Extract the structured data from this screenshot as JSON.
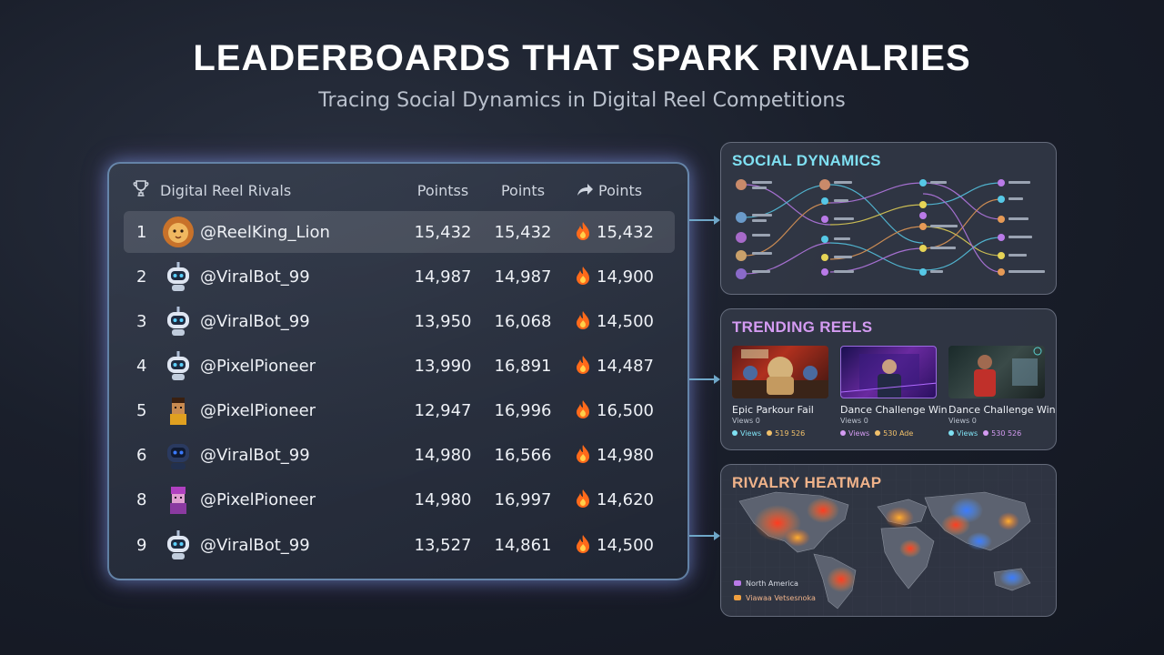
{
  "header": {
    "title": "LEADERBOARDS THAT SPARK RIVALRIES",
    "subtitle": "Tracing Social Dynamics in Digital Reel Competitions"
  },
  "leaderboard": {
    "title": "Digital Reel Rivals",
    "columns": [
      "Pointss",
      "Points",
      "Points"
    ],
    "rows": [
      {
        "rank": "1",
        "user": "@ReelKing_Lion",
        "avatar": "lion-avatar",
        "p1": "15,432",
        "p2": "15,432",
        "p3": "15,432"
      },
      {
        "rank": "2",
        "user": "@ViralBot_99",
        "avatar": "robot-avatar",
        "p1": "14,987",
        "p2": "14,987",
        "p3": "14,900"
      },
      {
        "rank": "3",
        "user": "@ViralBot_99",
        "avatar": "robot-avatar",
        "p1": "13,950",
        "p2": "16,068",
        "p3": "14,500"
      },
      {
        "rank": "4",
        "user": "@PixelPioneer",
        "avatar": "robot-avatar",
        "p1": "13,990",
        "p2": "16,891",
        "p3": "14,487"
      },
      {
        "rank": "5",
        "user": "@PixelPioneer",
        "avatar": "pixel-person-avatar",
        "p1": "12,947",
        "p2": "16,996",
        "p3": "16,500"
      },
      {
        "rank": "6",
        "user": "@ViralBot_99",
        "avatar": "dark-robot-avatar",
        "p1": "14,980",
        "p2": "16,566",
        "p3": "14,980"
      },
      {
        "rank": "8",
        "user": "@PixelPioneer",
        "avatar": "pink-pixel-avatar",
        "p1": "14,980",
        "p2": "16,997",
        "p3": "14,620"
      },
      {
        "rank": "9",
        "user": "@ViralBot_99",
        "avatar": "robot-avatar",
        "p1": "13,527",
        "p2": "14,861",
        "p3": "14,500"
      }
    ]
  },
  "social": {
    "title": "SOCIAL DYNAMICS"
  },
  "trending": {
    "title": "TRENDING REELS",
    "reels": [
      {
        "title": "Epic Parkour Fail",
        "views": "Views 0",
        "tag1": "Views",
        "tag2": "519 526"
      },
      {
        "title": "Dance Challenge Win",
        "views": "Views 0",
        "tag1": "Views",
        "tag2": "530 Ade"
      },
      {
        "title": "Dance Challenge Win",
        "views": "Views 0",
        "tag1": "Views",
        "tag2": "530 526"
      }
    ]
  },
  "heatmap": {
    "title": "RIVALRY HEATMAP",
    "legend": [
      "North America",
      "Viawaa Vetsesnoka"
    ]
  },
  "colors": {
    "accent_cyan": "#7fe0f2",
    "accent_purple": "#d49bf2",
    "accent_orange": "#f0b38a",
    "fire": "#ff6a1a"
  }
}
